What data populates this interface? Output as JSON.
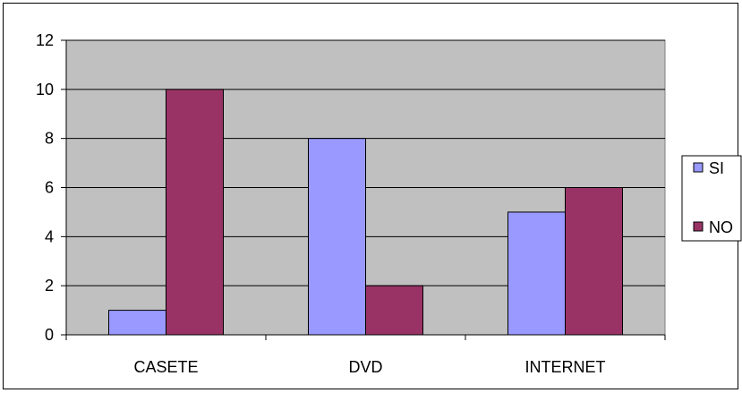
{
  "chart_data": {
    "type": "bar",
    "categories": [
      "CASETE",
      "DVD",
      "INTERNET"
    ],
    "series": [
      {
        "name": "SI",
        "values": [
          1,
          8,
          5
        ],
        "color": "#9999ff"
      },
      {
        "name": "NO",
        "values": [
          10,
          2,
          6
        ],
        "color": "#993366"
      }
    ],
    "ylim": [
      0,
      12
    ],
    "yticks": [
      "0",
      "2",
      "4",
      "6",
      "8",
      "10",
      "12"
    ],
    "grid": true,
    "plot_background": "#c0c0c0",
    "legend": "right"
  }
}
